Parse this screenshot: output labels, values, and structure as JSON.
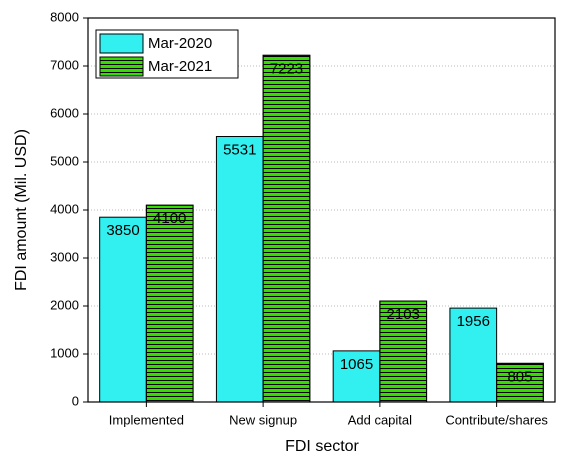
{
  "chart_data": {
    "type": "bar",
    "xlabel": "FDI sector",
    "ylabel": "FDI amount (Mil. USD)",
    "categories": [
      "Implemented",
      "New signup",
      "Add capital",
      "Contribute/shares"
    ],
    "series": [
      {
        "name": "Mar-2020",
        "color": "#33f0f0",
        "values": [
          3850,
          5531,
          1065,
          1956
        ]
      },
      {
        "name": "Mar-2021",
        "color": "#33dd00",
        "values": [
          4100,
          7223,
          2103,
          805
        ]
      }
    ],
    "ylim": [
      0,
      8000
    ],
    "yticks": [
      0,
      1000,
      2000,
      3000,
      4000,
      5000,
      6000,
      7000,
      8000
    ],
    "grid": true,
    "legend": "upper left"
  }
}
